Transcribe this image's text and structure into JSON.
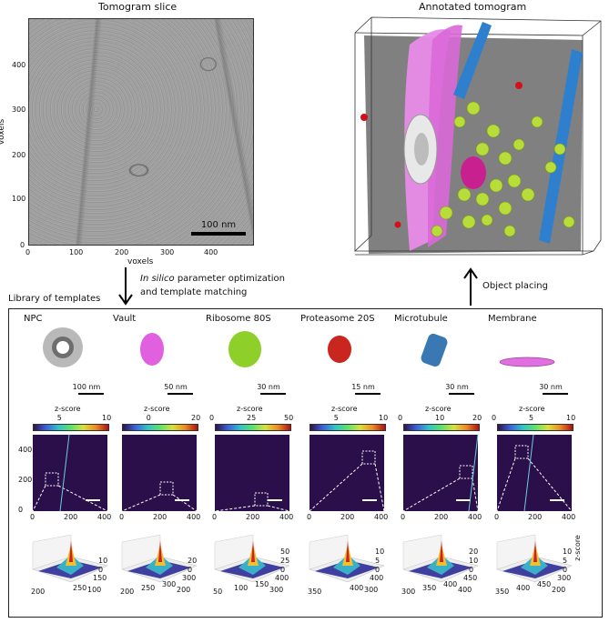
{
  "tomogram_slice": {
    "title": "Tomogram slice",
    "xlabel": "voxels",
    "ylabel": "voxels",
    "xticks": [
      "0",
      "100",
      "200",
      "300",
      "400"
    ],
    "yticks": [
      "0",
      "100",
      "200",
      "300",
      "400"
    ],
    "scalebar": "100 nm"
  },
  "annotated": {
    "title": "Annotated tomogram"
  },
  "arrows": {
    "down_italic": "In silico",
    "down_rest": " parameter optimization",
    "down_line2": "and template matching",
    "up_label": "Object placing"
  },
  "library": {
    "title": "Library of templates",
    "colorbar_label": "z-score",
    "templates": [
      {
        "name": "NPC",
        "scale": "100 nm",
        "cb_ticks": [
          "5",
          "10"
        ],
        "color": "#b9b9b9",
        "x_ticks": [
          "0",
          "200",
          "400"
        ],
        "y_ticks": [
          "0",
          "200",
          "400"
        ],
        "surf_x": [
          "200",
          "250"
        ],
        "surf_y": [
          "100",
          "150"
        ],
        "surf_z": [
          "0",
          "10"
        ]
      },
      {
        "name": "Vault",
        "scale": "50 nm",
        "cb_ticks": [
          "0",
          "20"
        ],
        "color": "#e060e0",
        "x_ticks": [
          "0",
          "200",
          "400"
        ],
        "y_ticks": [],
        "surf_x": [
          "200",
          "250",
          "300"
        ],
        "surf_y": [
          "200",
          "300"
        ],
        "surf_z": [
          "0",
          "20"
        ]
      },
      {
        "name": "Ribosome 80S",
        "scale": "30 nm",
        "cb_ticks": [
          "0",
          "25",
          "50"
        ],
        "color": "#8fcf2a",
        "x_ticks": [
          "0",
          "200",
          "400"
        ],
        "y_ticks": [],
        "surf_x": [
          "50",
          "100",
          "150"
        ],
        "surf_y": [
          "300",
          "400"
        ],
        "surf_z": [
          "0",
          "25",
          "50"
        ]
      },
      {
        "name": "Proteasome 20S",
        "scale": "15 nm",
        "cb_ticks": [
          "5",
          "10"
        ],
        "color": "#c8261e",
        "x_ticks": [
          "0",
          "200",
          "400"
        ],
        "y_ticks": [],
        "surf_x": [
          "350",
          "400"
        ],
        "surf_y": [
          "300",
          "400"
        ],
        "surf_z": [
          "0",
          "5",
          "10"
        ]
      },
      {
        "name": "Microtubule",
        "scale": "30 nm",
        "cb_ticks": [
          "0",
          "10",
          "20"
        ],
        "color": "#3a78b4",
        "x_ticks": [
          "0",
          "200",
          "400"
        ],
        "y_ticks": [],
        "surf_x": [
          "300",
          "350",
          "400"
        ],
        "surf_y": [
          "400",
          "450"
        ],
        "surf_z": [
          "0",
          "10",
          "20"
        ]
      },
      {
        "name": "Membrane",
        "scale": "30 nm",
        "cb_ticks": [
          "0",
          "5",
          "10"
        ],
        "color": "#e070e0",
        "x_ticks": [
          "0",
          "200",
          "400"
        ],
        "y_ticks": [],
        "surf_x": [
          "350",
          "400",
          "450"
        ],
        "surf_y": [
          "200",
          "300"
        ],
        "surf_z": [
          "0",
          "5",
          "10"
        ],
        "surf_zlabel": "z-score"
      }
    ]
  }
}
